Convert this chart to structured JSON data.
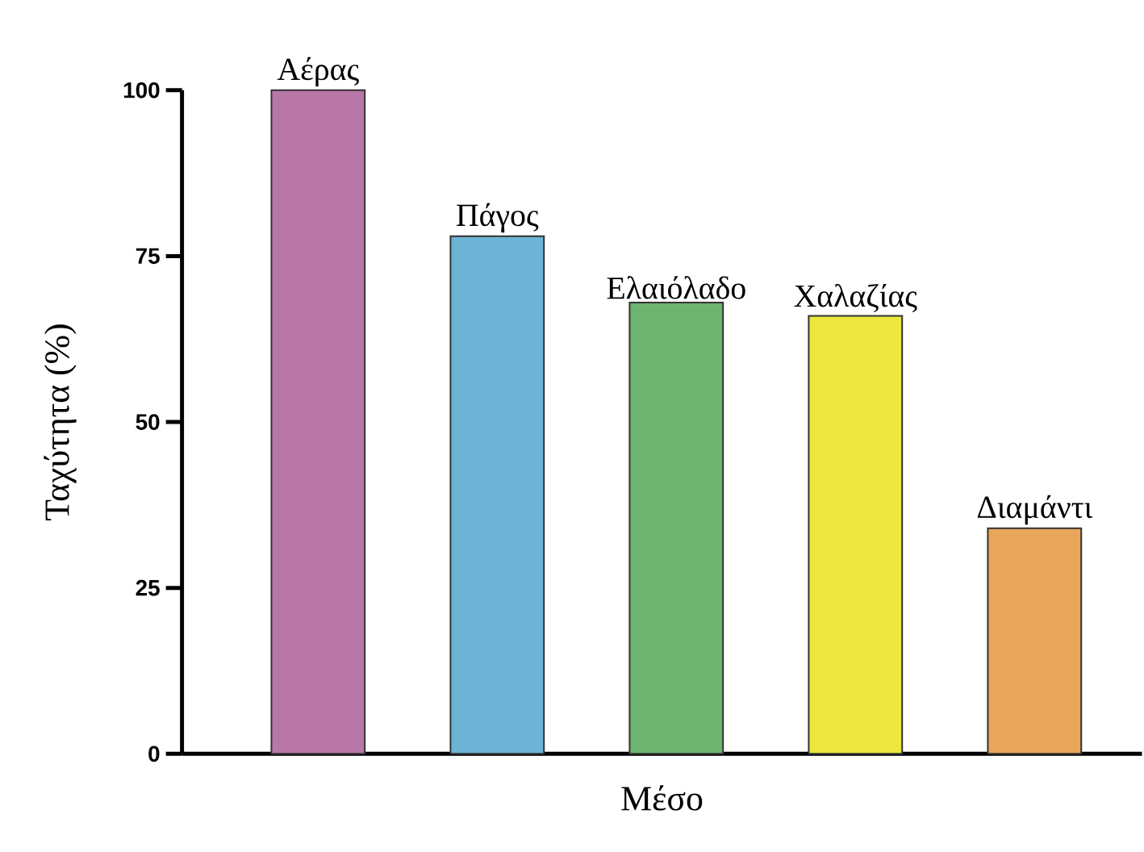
{
  "chart_data": {
    "type": "bar",
    "xlabel": "Μέσο",
    "ylabel": "Ταχύτητα (%)",
    "categories": [
      "Αέρας",
      "Πάγος",
      "Ελαιόλαδο",
      "Χαλαζίας",
      "Διαμάντι"
    ],
    "values": [
      100,
      78,
      68,
      66,
      34
    ],
    "colors": [
      "#b877a6",
      "#6bb4d6",
      "#6db56f",
      "#ede63f",
      "#e9a65a"
    ],
    "ylim": [
      0,
      100
    ],
    "yticks": [
      0,
      25,
      50,
      75,
      100
    ],
    "tick_labels": "y"
  }
}
